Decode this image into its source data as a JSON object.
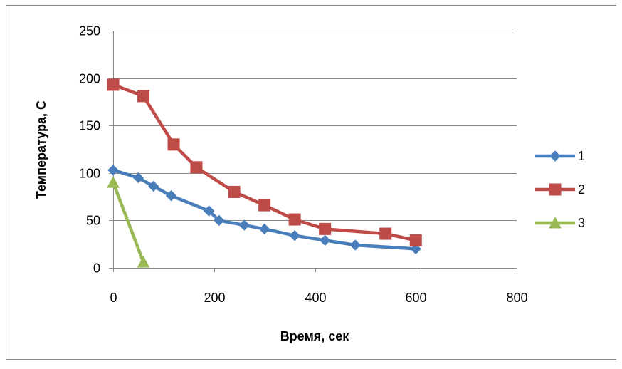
{
  "chart_data": {
    "type": "line",
    "title": "",
    "xlabel": "Время, сек",
    "ylabel": "Температура, С",
    "xlim": [
      0,
      800
    ],
    "ylim": [
      0,
      250
    ],
    "xticks": [
      0,
      200,
      400,
      600,
      800
    ],
    "yticks": [
      0,
      50,
      100,
      150,
      200,
      250
    ],
    "grid": "horizontal",
    "legend_position": "right",
    "series": [
      {
        "name": "1",
        "color": "#4a7ebb",
        "marker": "diamond",
        "x": [
          0,
          50,
          80,
          115,
          190,
          210,
          260,
          300,
          360,
          420,
          480,
          600
        ],
        "y": [
          103,
          95,
          86,
          76,
          60,
          50,
          45,
          41,
          34,
          29,
          24,
          20
        ]
      },
      {
        "name": "2",
        "color": "#be4b48",
        "marker": "square",
        "x": [
          0,
          60,
          120,
          165,
          240,
          300,
          360,
          420,
          540,
          600
        ],
        "y": [
          193,
          181,
          130,
          106,
          80,
          66,
          51,
          41,
          36,
          29
        ]
      },
      {
        "name": "3",
        "color": "#98b954",
        "marker": "triangle",
        "x": [
          0,
          60
        ],
        "y": [
          90,
          6
        ]
      }
    ]
  }
}
